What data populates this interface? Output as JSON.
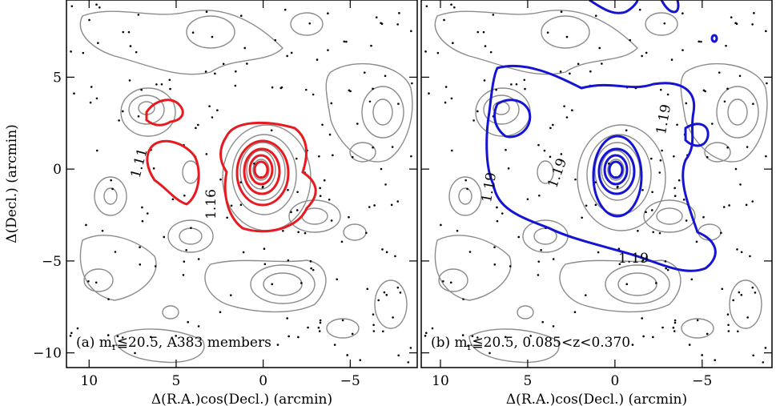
{
  "chart_data": [
    {
      "type": "contour",
      "panel_label": {
        "prefix": "(a) m",
        "sub": "r",
        "rest": "≦20.5, A383 members"
      },
      "xlabel": "Δ(R.A.)cos(Decl.) (arcmin)",
      "ylabel": "Δ(Decl.) (arcmin)",
      "xlim": [
        11.3,
        -8.85
      ],
      "ylim": [
        -10.8,
        9.2
      ],
      "xticks": [
        10,
        5,
        0,
        {
          "value": -5,
          "label": "−5"
        }
      ],
      "yticks": [
        {
          "value": -10,
          "label": "−10"
        },
        {
          "value": -5,
          "label": "−5"
        },
        0,
        5
      ],
      "ytick_labels": true,
      "contour_color": "#e8191f",
      "contour_labels": [
        "1.11",
        "1.16"
      ]
    },
    {
      "type": "contour",
      "panel_label": {
        "prefix": "(b) m",
        "sub": "r",
        "rest": "≦20.5, 0.085<z<0.370"
      },
      "xlabel": "Δ(R.A.)cos(Decl.) (arcmin)",
      "xlim": [
        11.1,
        -9.0
      ],
      "ylim": [
        -10.8,
        9.2
      ],
      "xticks": [
        10,
        5,
        0,
        {
          "value": -5,
          "label": "−5"
        }
      ],
      "yticks": [
        {
          "value": -10,
          "label": "−10"
        },
        {
          "value": -5,
          "label": "−5"
        },
        0,
        5
      ],
      "ytick_labels": false,
      "contour_color": "#1414d2",
      "contour_labels": [
        "1.19",
        "1.19",
        "1.19",
        "1.19"
      ]
    }
  ]
}
